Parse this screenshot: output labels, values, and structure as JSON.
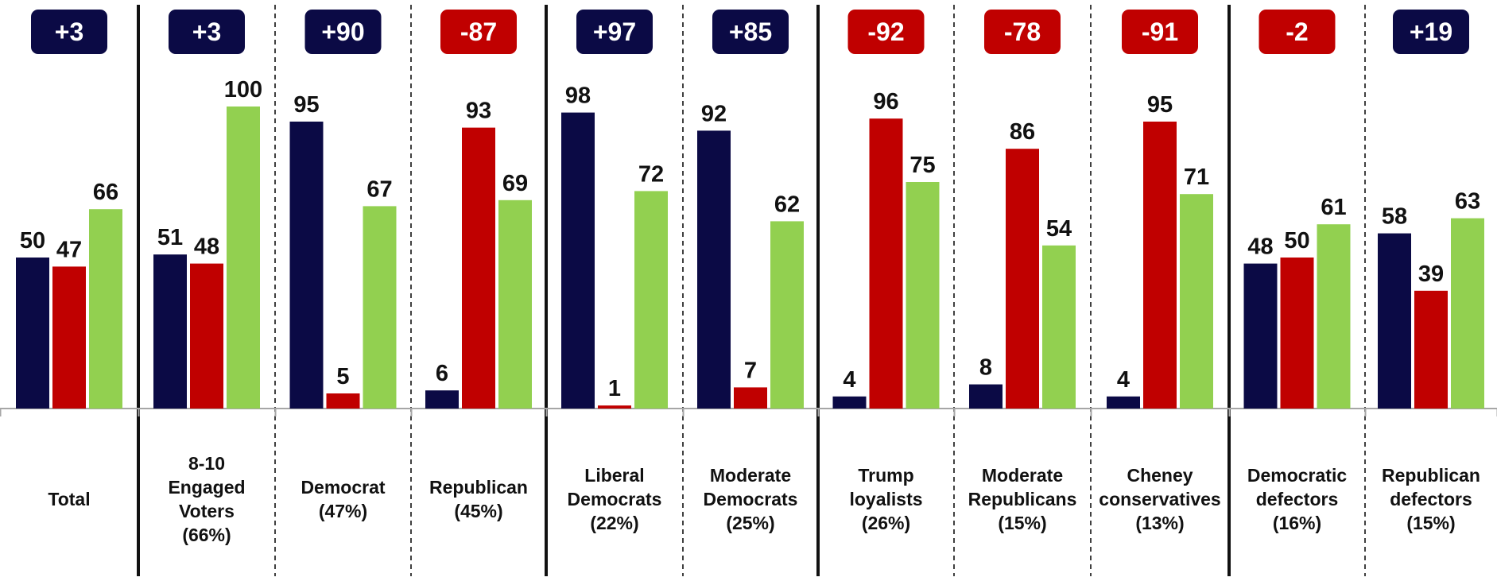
{
  "colors": {
    "series_a": "#0b0a45",
    "series_b": "#c00000",
    "series_c": "#92d050",
    "badge_positive": "#0b0a45",
    "badge_negative": "#c00000"
  },
  "chart_data": {
    "type": "bar",
    "ylim": [
      0,
      100
    ],
    "categories": [
      {
        "lines": [
          "Total"
        ],
        "badge": "+3",
        "badge_sign": "positive"
      },
      {
        "lines": [
          "8-10",
          "Engaged",
          "Voters",
          "(66%)"
        ],
        "badge": "+3",
        "badge_sign": "positive"
      },
      {
        "lines": [
          "Democrat",
          "(47%)"
        ],
        "badge": "+90",
        "badge_sign": "positive"
      },
      {
        "lines": [
          "Republican",
          "(45%)"
        ],
        "badge": "-87",
        "badge_sign": "negative"
      },
      {
        "lines": [
          "Liberal",
          "Democrats",
          "(22%)"
        ],
        "badge": "+97",
        "badge_sign": "positive"
      },
      {
        "lines": [
          "Moderate",
          "Democrats",
          "(25%)"
        ],
        "badge": "+85",
        "badge_sign": "positive"
      },
      {
        "lines": [
          "Trump",
          "loyalists",
          "(26%)"
        ],
        "badge": "-92",
        "badge_sign": "negative"
      },
      {
        "lines": [
          "Moderate",
          "Republicans",
          "(15%)"
        ],
        "badge": "-78",
        "badge_sign": "negative"
      },
      {
        "lines": [
          "Cheney",
          "conservatives",
          "(13%)"
        ],
        "badge": "-91",
        "badge_sign": "negative"
      },
      {
        "lines": [
          "Democratic",
          "defectors",
          "(16%)"
        ],
        "badge": "-2",
        "badge_sign": "negative"
      },
      {
        "lines": [
          "Republican",
          "defectors",
          "(15%)"
        ],
        "badge": "+19",
        "badge_sign": "positive"
      }
    ],
    "series": [
      {
        "values": [
          50,
          51,
          95,
          6,
          98,
          92,
          4,
          8,
          4,
          48,
          58
        ]
      },
      {
        "values": [
          47,
          48,
          5,
          93,
          1,
          7,
          96,
          86,
          95,
          50,
          39
        ]
      },
      {
        "values": [
          66,
          100,
          67,
          69,
          72,
          62,
          75,
          54,
          71,
          61,
          63
        ]
      }
    ],
    "separators": [
      "solid",
      "dashed",
      "dashed",
      "solid",
      "dashed",
      "solid",
      "dashed",
      "dashed",
      "solid",
      "dashed"
    ]
  }
}
